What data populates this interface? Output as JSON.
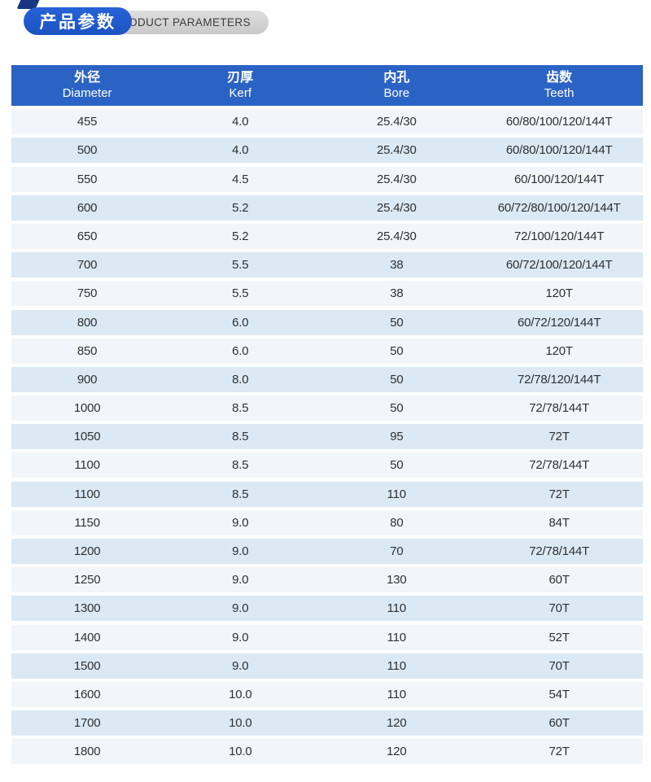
{
  "badge": {
    "title_zh": "产品参数",
    "title_en": "PRODUCT PARAMETERS"
  },
  "table": {
    "columns": [
      {
        "key": "diameter",
        "zh": "外径",
        "en": "Diameter"
      },
      {
        "key": "kerf",
        "zh": "刃厚",
        "en": "Kerf"
      },
      {
        "key": "bore",
        "zh": "内孔",
        "en": "Bore"
      },
      {
        "key": "teeth",
        "zh": "齿数",
        "en": "Teeth"
      }
    ],
    "rows": [
      [
        "455",
        "4.0",
        "25.4/30",
        "60/80/100/120/144T"
      ],
      [
        "500",
        "4.0",
        "25.4/30",
        "60/80/100/120/144T"
      ],
      [
        "550",
        "4.5",
        "25.4/30",
        "60/100/120/144T"
      ],
      [
        "600",
        "5.2",
        "25.4/30",
        "60/72/80/100/120/144T"
      ],
      [
        "650",
        "5.2",
        "25.4/30",
        "72/100/120/144T"
      ],
      [
        "700",
        "5.5",
        "38",
        "60/72/100/120/144T"
      ],
      [
        "750",
        "5.5",
        "38",
        "120T"
      ],
      [
        "800",
        "6.0",
        "50",
        "60/72/120/144T"
      ],
      [
        "850",
        "6.0",
        "50",
        "120T"
      ],
      [
        "900",
        "8.0",
        "50",
        "72/78/120/144T"
      ],
      [
        "1000",
        "8.5",
        "50",
        "72/78/144T"
      ],
      [
        "1050",
        "8.5",
        "95",
        "72T"
      ],
      [
        "1100",
        "8.5",
        "50",
        "72/78/144T"
      ],
      [
        "1100",
        "8.5",
        "110",
        "72T"
      ],
      [
        "1150",
        "9.0",
        "80",
        "84T"
      ],
      [
        "1200",
        "9.0",
        "70",
        "72/78/144T"
      ],
      [
        "1250",
        "9.0",
        "130",
        "60T"
      ],
      [
        "1300",
        "9.0",
        "110",
        "70T"
      ],
      [
        "1400",
        "9.0",
        "110",
        "52T"
      ],
      [
        "1500",
        "9.0",
        "110",
        "70T"
      ],
      [
        "1600",
        "10.0",
        "110",
        "54T"
      ],
      [
        "1700",
        "10.0",
        "120",
        "60T"
      ],
      [
        "1800",
        "10.0",
        "120",
        "72T"
      ]
    ]
  },
  "colors": {
    "accent_blue": "#1f5ac8",
    "header_blue": "#2b63c4",
    "fold_navy": "#173580",
    "pill_gray": "#cccccc",
    "row_light": "#f2f6fa",
    "row_blue": "#dbe9f4",
    "text_dark": "#303030",
    "header_text": "#ffffff"
  }
}
